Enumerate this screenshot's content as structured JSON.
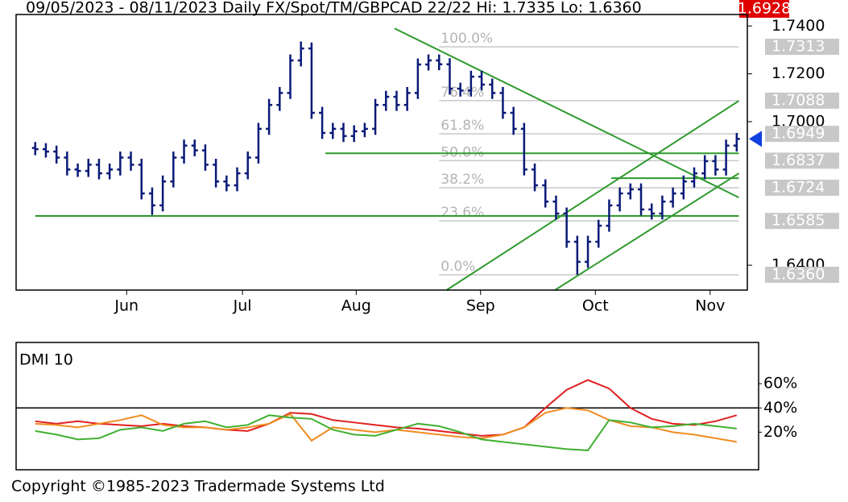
{
  "chart_data": [
    {
      "type": "ohlc",
      "title": "09/05/2023 - 08/11/2023  Daily  FX/Spot/TM/GBPCAD 22/22  Hi: 1.7335  Lo: 1.6360",
      "color": "#0a1a78",
      "trend_color": "#2f9a2f",
      "fib_color": "#c8c8c8",
      "last": {
        "value": 1.6928,
        "label": "1.6928"
      },
      "last_color": "#e00000",
      "marker_color": "#1040e0",
      "xlim": [
        -1.8,
        67
      ],
      "xticks": [
        {
          "value": 8.6,
          "label": "Jun"
        },
        {
          "value": 19.5,
          "label": "Jul"
        },
        {
          "value": 30.2,
          "label": "Aug"
        },
        {
          "value": 41.9,
          "label": "Sep"
        },
        {
          "value": 52.7,
          "label": "Oct"
        },
        {
          "value": 63.5,
          "label": "Nov"
        }
      ],
      "ylim": [
        1.6296,
        1.7448
      ],
      "yticks": [
        {
          "value": 1.74,
          "label": "1.7400"
        },
        {
          "value": 1.72,
          "label": "1.7200"
        },
        {
          "value": 1.7,
          "label": "1.7000"
        },
        {
          "value": 1.64,
          "label": "1.6400"
        }
      ],
      "open": [
        1.689,
        1.6885,
        1.6875,
        1.685,
        1.68,
        1.6794,
        1.682,
        1.6784,
        1.68,
        1.685,
        1.682,
        1.67,
        1.665,
        1.675,
        1.685,
        1.69,
        1.688,
        1.682,
        1.675,
        1.6734,
        1.6784,
        1.685,
        1.697,
        1.707,
        1.712,
        1.7256,
        1.7306,
        1.7037,
        1.6953,
        1.697,
        1.694,
        1.696,
        1.697,
        1.707,
        1.7104,
        1.707,
        1.712,
        1.7239,
        1.7256,
        1.724,
        1.7138,
        1.713,
        1.7188,
        1.7155,
        1.712,
        1.7037,
        1.697,
        1.68,
        1.6734,
        1.6666,
        1.6616,
        1.6498,
        1.6414,
        1.6498,
        1.6565,
        1.665,
        1.67,
        1.6717,
        1.6633,
        1.6616,
        1.6666,
        1.67,
        1.675,
        1.6784,
        1.6835,
        1.68,
        1.69
      ],
      "high": [
        1.6915,
        1.691,
        1.69,
        1.6875,
        1.6825,
        1.6845,
        1.6845,
        1.6825,
        1.6875,
        1.6875,
        1.6845,
        1.6725,
        1.6775,
        1.6875,
        1.6925,
        1.6925,
        1.6905,
        1.6845,
        1.6775,
        1.6809,
        1.6875,
        1.6995,
        1.7095,
        1.7145,
        1.7281,
        1.7335,
        1.7331,
        1.7062,
        1.6995,
        1.6995,
        1.6985,
        1.6995,
        1.7095,
        1.7129,
        1.7129,
        1.7145,
        1.7264,
        1.7281,
        1.7281,
        1.7265,
        1.7163,
        1.7213,
        1.7213,
        1.718,
        1.7145,
        1.7062,
        1.6995,
        1.6825,
        1.6759,
        1.6691,
        1.6641,
        1.6523,
        1.6523,
        1.659,
        1.6675,
        1.6725,
        1.6742,
        1.6742,
        1.6658,
        1.6691,
        1.6725,
        1.6775,
        1.6809,
        1.686,
        1.686,
        1.6925,
        1.6953
      ],
      "low": [
        1.686,
        1.685,
        1.6825,
        1.6775,
        1.6769,
        1.6769,
        1.6759,
        1.6759,
        1.6775,
        1.6795,
        1.6675,
        1.661,
        1.6625,
        1.6725,
        1.6825,
        1.6855,
        1.6795,
        1.6725,
        1.6709,
        1.6709,
        1.6759,
        1.6825,
        1.6945,
        1.7045,
        1.7095,
        1.7231,
        1.7012,
        1.6928,
        1.6928,
        1.6915,
        1.6915,
        1.6935,
        1.6945,
        1.7045,
        1.7045,
        1.7045,
        1.7095,
        1.7214,
        1.7215,
        1.7113,
        1.7105,
        1.7105,
        1.713,
        1.7095,
        1.7012,
        1.6945,
        1.6775,
        1.6709,
        1.6641,
        1.6591,
        1.6473,
        1.636,
        1.6389,
        1.6473,
        1.654,
        1.6625,
        1.6675,
        1.6608,
        1.6591,
        1.6591,
        1.6641,
        1.6675,
        1.6725,
        1.6759,
        1.6775,
        1.6775,
        1.6875
      ],
      "close": [
        1.6885,
        1.6875,
        1.685,
        1.68,
        1.6794,
        1.682,
        1.6784,
        1.68,
        1.685,
        1.682,
        1.67,
        1.665,
        1.675,
        1.685,
        1.69,
        1.688,
        1.682,
        1.675,
        1.6734,
        1.6784,
        1.685,
        1.697,
        1.707,
        1.712,
        1.7256,
        1.7306,
        1.7037,
        1.6953,
        1.697,
        1.694,
        1.696,
        1.697,
        1.707,
        1.7104,
        1.707,
        1.712,
        1.7239,
        1.7256,
        1.724,
        1.7138,
        1.713,
        1.7188,
        1.7155,
        1.712,
        1.7037,
        1.697,
        1.68,
        1.6734,
        1.6666,
        1.6616,
        1.6498,
        1.6414,
        1.6498,
        1.6565,
        1.665,
        1.67,
        1.6717,
        1.6633,
        1.6616,
        1.6666,
        1.67,
        1.675,
        1.6784,
        1.6835,
        1.68,
        1.69,
        1.6928
      ],
      "trendlines": [
        [
          0,
          1.6606,
          66.2,
          1.6606
        ],
        [
          27.3,
          1.6868,
          66.2,
          1.6868
        ],
        [
          54.2,
          1.6764,
          66.2,
          1.6764
        ],
        [
          33.8,
          1.739,
          66.2,
          1.6683
        ],
        [
          38.7,
          1.6296,
          66.2,
          1.7087
        ],
        [
          48.9,
          1.6296,
          66.2,
          1.6784
        ]
      ],
      "fib_range": [
        38,
        66.2
      ],
      "fib": [
        {
          "label": "100.0%",
          "price": {
            "value": 1.7313,
            "label": "1.7313"
          }
        },
        {
          "label": "76.4%",
          "price": {
            "value": 1.7088,
            "label": "1.7088"
          }
        },
        {
          "label": "61.8%",
          "price": {
            "value": 1.6949,
            "label": "1.6949"
          }
        },
        {
          "label": "50.0%",
          "price": {
            "value": 1.6837,
            "label": "1.6837"
          }
        },
        {
          "label": "38.2%",
          "price": {
            "value": 1.6724,
            "label": "1.6724"
          }
        },
        {
          "label": "23.6%",
          "price": {
            "value": 1.6585,
            "label": "1.6585"
          }
        },
        {
          "label": "0.0%",
          "price": {
            "value": 1.636,
            "label": "1.6360"
          }
        }
      ]
    },
    {
      "type": "line",
      "title": "DMI 10",
      "xlim": [
        -1.8,
        67
      ],
      "ylim": [
        -11,
        94
      ],
      "reference_line": 40,
      "yticks": [
        {
          "value": 60,
          "label": "60%"
        },
        {
          "value": 40,
          "label": "40%"
        },
        {
          "value": 20,
          "label": "20%"
        }
      ],
      "x": [
        0,
        2,
        4,
        6,
        8,
        10,
        12,
        14,
        16,
        18,
        20,
        22,
        24,
        26,
        28,
        30,
        32,
        34,
        36,
        38,
        40,
        42,
        44,
        46,
        48,
        50,
        52,
        54,
        56,
        58,
        60,
        62,
        64,
        66
      ],
      "series": [
        {
          "color": "#e02020",
          "values": [
            29,
            27,
            29,
            27,
            26,
            25,
            27,
            25,
            24,
            22,
            21,
            27,
            36,
            35,
            30,
            28,
            26,
            24,
            23,
            21,
            19,
            17,
            18,
            24,
            40,
            55,
            63,
            56,
            40,
            31,
            27,
            26,
            29,
            34
          ]
        },
        {
          "color": "#f08c20",
          "values": [
            27,
            26,
            24,
            27,
            30,
            34,
            26,
            24,
            24,
            22,
            24,
            27,
            35,
            13,
            24,
            22,
            20,
            22,
            20,
            18,
            16,
            15,
            18,
            24,
            36,
            40,
            38,
            30,
            25,
            24,
            20,
            18,
            15,
            12
          ]
        },
        {
          "color": "#40b030",
          "values": [
            21,
            18,
            14,
            15,
            22,
            24,
            21,
            27,
            29,
            24,
            26,
            34,
            32,
            31,
            22,
            18,
            17,
            22,
            27,
            25,
            20,
            14,
            12,
            10,
            8,
            6,
            5,
            30,
            28,
            24,
            25,
            27,
            25,
            23
          ]
        }
      ]
    }
  ],
  "footer": "Copyright ©1985-2023 Tradermade Systems Ltd"
}
